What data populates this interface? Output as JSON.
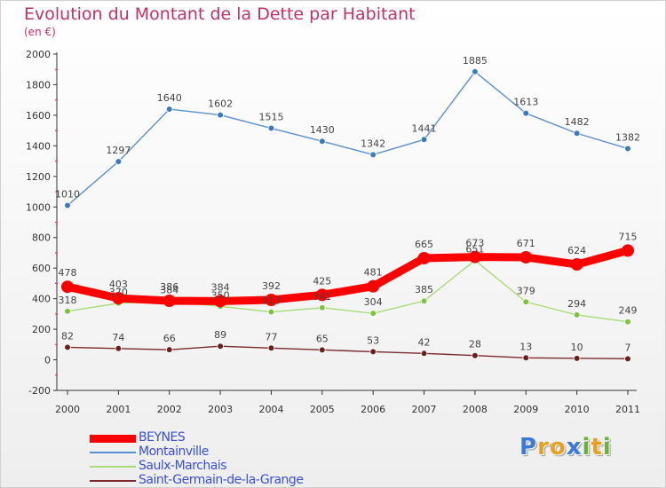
{
  "title": "Evolution du Montant de la Dette par Habitant",
  "subtitle": "(en €)",
  "logo": {
    "text": "Proxiti",
    "letters": [
      {
        "ch": "P",
        "color": "#3a7bd5"
      },
      {
        "ch": "r",
        "color": "#e8a020"
      },
      {
        "ch": "o",
        "color": "#e8a020"
      },
      {
        "ch": "x",
        "color": "#3a7bd5"
      },
      {
        "ch": "i",
        "color": "#6ab23a"
      },
      {
        "ch": "t",
        "color": "#e8a020"
      },
      {
        "ch": "i",
        "color": "#6ab23a"
      }
    ]
  },
  "chart_data": {
    "type": "line",
    "title": "Evolution du Montant de la Dette par Habitant",
    "subtitle": "(en €)",
    "x": [
      "2000",
      "2001",
      "2002",
      "2003",
      "2004",
      "2005",
      "2006",
      "2007",
      "2008",
      "2009",
      "2010",
      "2011"
    ],
    "ylim": [
      -200,
      2000
    ],
    "yticks": [
      -200,
      0,
      200,
      400,
      600,
      800,
      1000,
      1200,
      1400,
      1600,
      1800,
      2000
    ],
    "grid": false,
    "legend_position": "bottom-left",
    "series": [
      {
        "name": "Montainville",
        "color": "#5a8fd0",
        "marker": "#3a78c0",
        "values": [
          1010,
          1297,
          1640,
          1602,
          1515,
          1430,
          1342,
          1441,
          1885,
          1613,
          1482,
          1382
        ]
      },
      {
        "name": "Saulx-Marchais",
        "color": "#a8dc78",
        "marker": "#7cc43c",
        "values": [
          318,
          370,
          384,
          350,
          313,
          341,
          304,
          385,
          651,
          379,
          294,
          249
        ]
      },
      {
        "name": "Saint-Germain-de-la-Grange",
        "color": "#7a2a2a",
        "marker": "#6a1e1e",
        "values": [
          82,
          74,
          66,
          89,
          77,
          65,
          53,
          42,
          28,
          13,
          10,
          7
        ]
      },
      {
        "name": "BEYNES",
        "color": "#ff0000",
        "marker": "#ff0000",
        "values": [
          478,
          403,
          386,
          384,
          392,
          425,
          481,
          665,
          673,
          671,
          624,
          715
        ]
      }
    ]
  }
}
